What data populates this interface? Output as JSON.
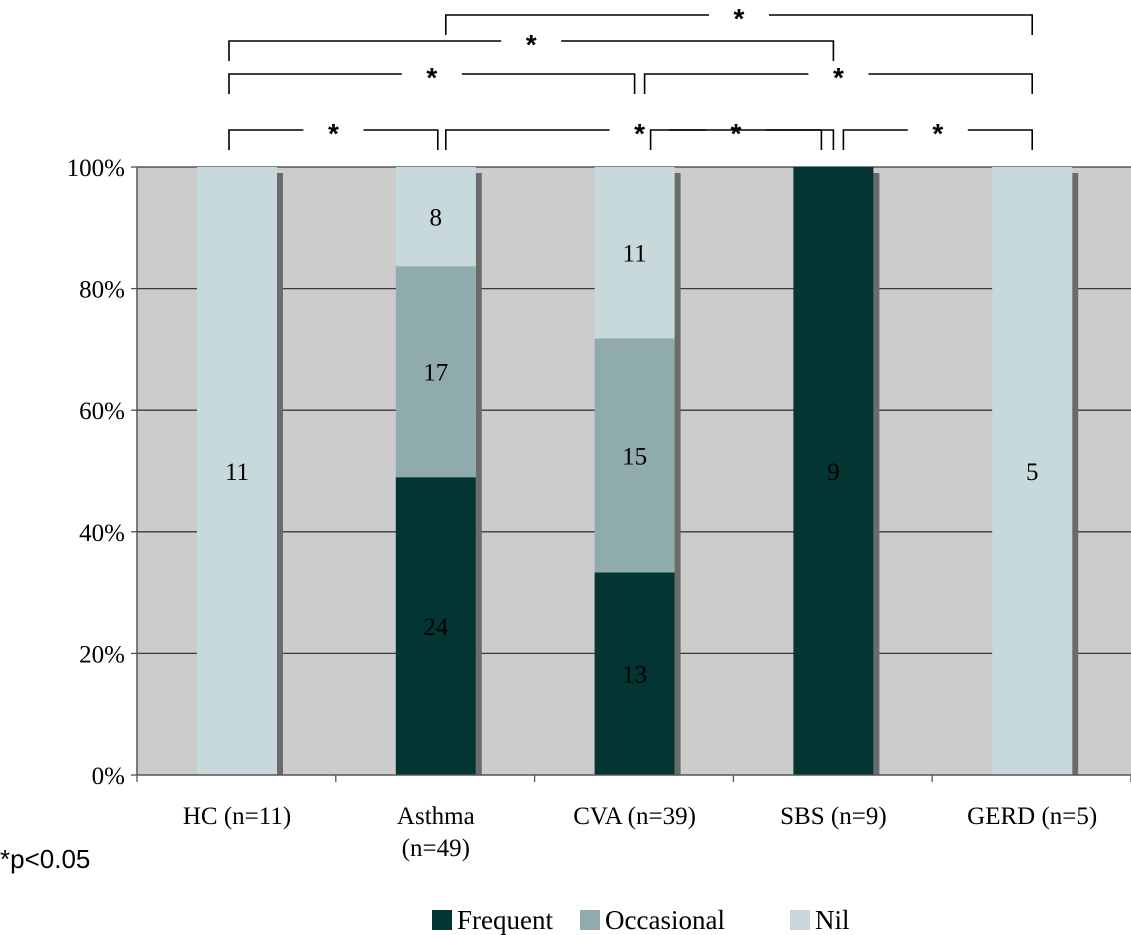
{
  "chart_data": {
    "type": "bar",
    "stacked": true,
    "percent": true,
    "categories": [
      [
        "HC (n=11)"
      ],
      [
        "Asthma",
        "(n=49)"
      ],
      [
        "CVA (n=39)"
      ],
      [
        "SBS (n=9)"
      ],
      [
        "GERD (n=5)"
      ]
    ],
    "series": [
      {
        "name": "Frequent",
        "color": "#033533",
        "values": [
          0,
          24,
          13,
          9,
          0
        ]
      },
      {
        "name": "Occasional",
        "color": "#8fabac",
        "values": [
          0,
          17,
          15,
          0,
          0
        ]
      },
      {
        "name": "Nil",
        "color": "#c8d9db",
        "values": [
          11,
          8,
          11,
          0,
          5
        ]
      }
    ],
    "yticks": [
      "0%",
      "20%",
      "40%",
      "60%",
      "80%",
      "100%"
    ],
    "ylim": [
      0,
      100
    ],
    "grid": true,
    "legend_position": "bottom",
    "significance": [
      {
        "from": 0,
        "to": 1,
        "label": "*"
      },
      {
        "from": 1,
        "to": 3,
        "label": "*"
      },
      {
        "from": 2,
        "to": 3,
        "label": "*"
      },
      {
        "from": 3,
        "to": 4,
        "label": "*"
      },
      {
        "from": 0,
        "to": 2,
        "label": "*"
      },
      {
        "from": 2,
        "to": 4,
        "label": "*"
      },
      {
        "from": 0,
        "to": 3,
        "label": "*"
      },
      {
        "from": 1,
        "to": 4,
        "label": "*"
      }
    ],
    "footnote": "*p<0.05",
    "background": "#cccccc"
  }
}
